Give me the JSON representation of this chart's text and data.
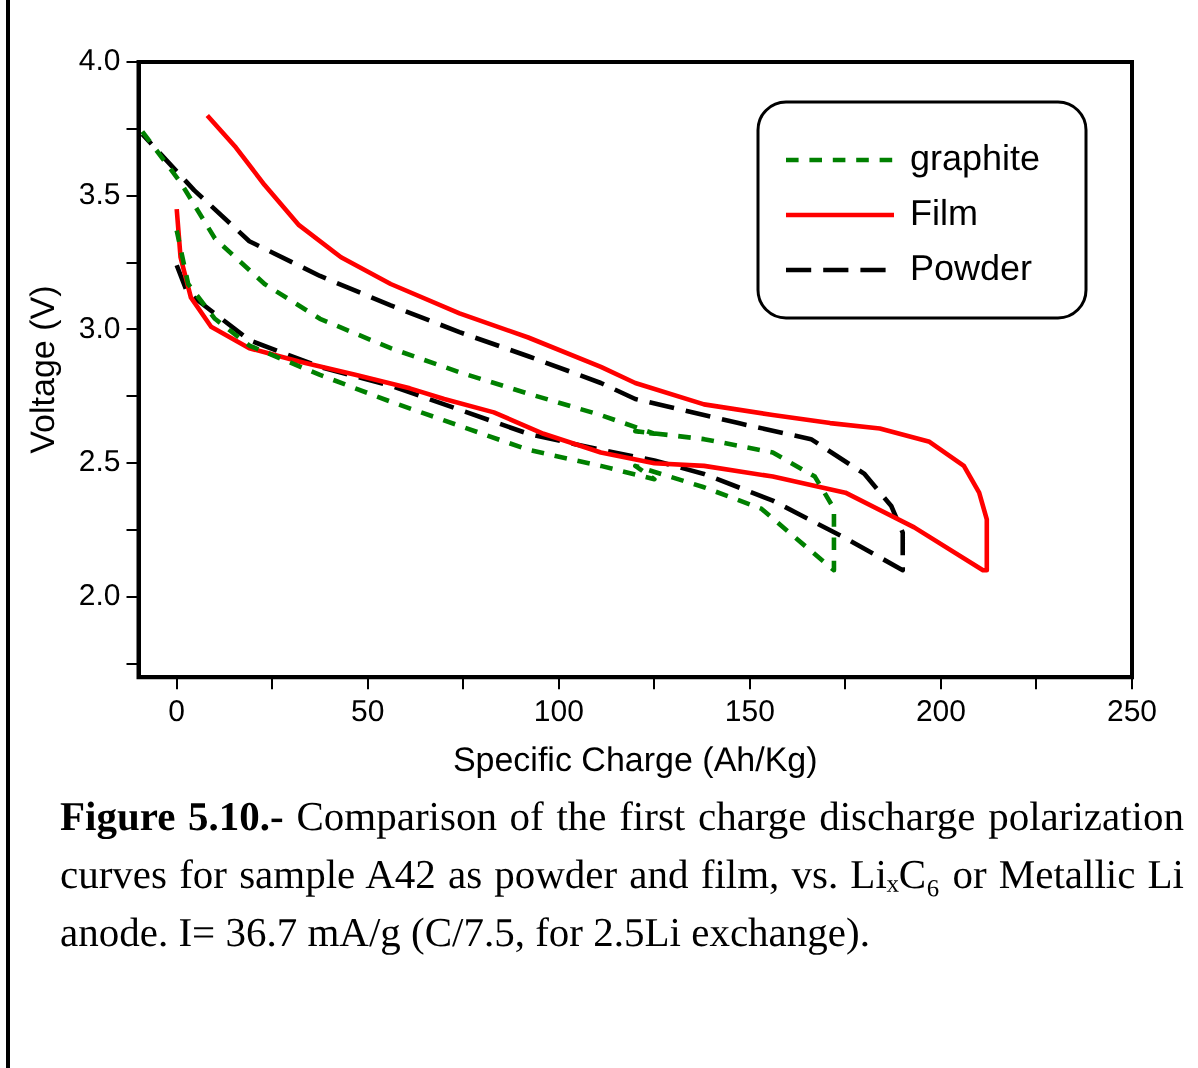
{
  "chart_data": {
    "type": "line",
    "xlabel": "Specific Charge (Ah/Kg)",
    "ylabel": "Voltage (V)",
    "xlim": [
      -10,
      250
    ],
    "ylim": [
      1.7,
      4.0
    ],
    "xticks": [
      0,
      {
        "value": 25,
        "label": null
      },
      50,
      {
        "value": 75,
        "label": null
      },
      100,
      {
        "value": 125,
        "label": null
      },
      150,
      {
        "value": 175,
        "label": null
      },
      200,
      {
        "value": 225,
        "label": null
      },
      250
    ],
    "yticks": [
      {
        "value": 1.75,
        "label": null
      },
      {
        "value": 2,
        "label": "2.0"
      },
      {
        "value": 2.25,
        "label": null
      },
      2.5,
      {
        "value": 2.75,
        "label": null
      },
      {
        "value": 3,
        "label": "3.0"
      },
      {
        "value": 3.25,
        "label": null
      },
      3.5,
      {
        "value": 3.75,
        "label": null
      },
      {
        "value": 4,
        "label": "4.0"
      }
    ],
    "grid": false,
    "legend": "top right",
    "marker": "none",
    "series": [
      {
        "name": "graphite",
        "color": "#008000",
        "line_style": "dashed",
        "x": [
          -9,
          1,
          10,
          23,
          37.5,
          56,
          74,
          92,
          111,
          125,
          120,
          138,
          156,
          167,
          172,
          172,
          162,
          153,
          138,
          120,
          125,
          111,
          92,
          74,
          56,
          37.5,
          19,
          10,
          3,
          0
        ],
        "values": [
          3.74,
          3.55,
          3.34,
          3.17,
          3.04,
          2.93,
          2.84,
          2.76,
          2.68,
          2.61,
          2.62,
          2.59,
          2.54,
          2.45,
          2.33,
          2.1,
          2.22,
          2.33,
          2.41,
          2.49,
          2.44,
          2.49,
          2.55,
          2.64,
          2.73,
          2.83,
          2.94,
          3.04,
          3.17,
          3.37
        ]
      },
      {
        "name": "Film",
        "color": "#ff0000",
        "line_style": "solid",
        "x": [
          0,
          1,
          3.7,
          9,
          19,
          32,
          47,
          61,
          70,
          83,
          96,
          111,
          125,
          138,
          156,
          175,
          193,
          211,
          212,
          212,
          210,
          206,
          197,
          184,
          171,
          156,
          138,
          120,
          111,
          92,
          74,
          56,
          43,
          32,
          23,
          15.5,
          8
        ],
        "values": [
          3.45,
          3.27,
          3.12,
          3.01,
          2.93,
          2.88,
          2.83,
          2.78,
          2.74,
          2.69,
          2.61,
          2.54,
          2.5,
          2.49,
          2.45,
          2.39,
          2.26,
          2.1,
          2.1,
          2.29,
          2.39,
          2.49,
          2.58,
          2.63,
          2.65,
          2.68,
          2.72,
          2.8,
          2.86,
          2.97,
          3.06,
          3.17,
          3.27,
          3.39,
          3.54,
          3.68,
          3.8
        ]
      },
      {
        "name": "Powder",
        "color": "#000000",
        "line_style": "dashed",
        "x": [
          0,
          2.7,
          9,
          19,
          37.5,
          56,
          74,
          92,
          111,
          125,
          138,
          156,
          175,
          190,
          190,
          187,
          180,
          166,
          147,
          129,
          120,
          111,
          92,
          74,
          56,
          37.5,
          19,
          4.6,
          -9
        ],
        "values": [
          3.24,
          3.14,
          3.07,
          2.96,
          2.86,
          2.79,
          2.7,
          2.61,
          2.55,
          2.51,
          2.46,
          2.36,
          2.22,
          2.1,
          2.24,
          2.34,
          2.46,
          2.59,
          2.65,
          2.71,
          2.74,
          2.8,
          2.9,
          2.99,
          3.09,
          3.2,
          3.33,
          3.52,
          3.73
        ]
      }
    ],
    "annotations": [
      "Figure 5.10.-",
      "Comparison of the first charge discharge polarization curves for sample A42 as powder and film, vs. LiₓC₆ or Metallic Li anode. I= 36.7 mA/g (C/7.5, for 2.5Li exchange)."
    ]
  }
}
